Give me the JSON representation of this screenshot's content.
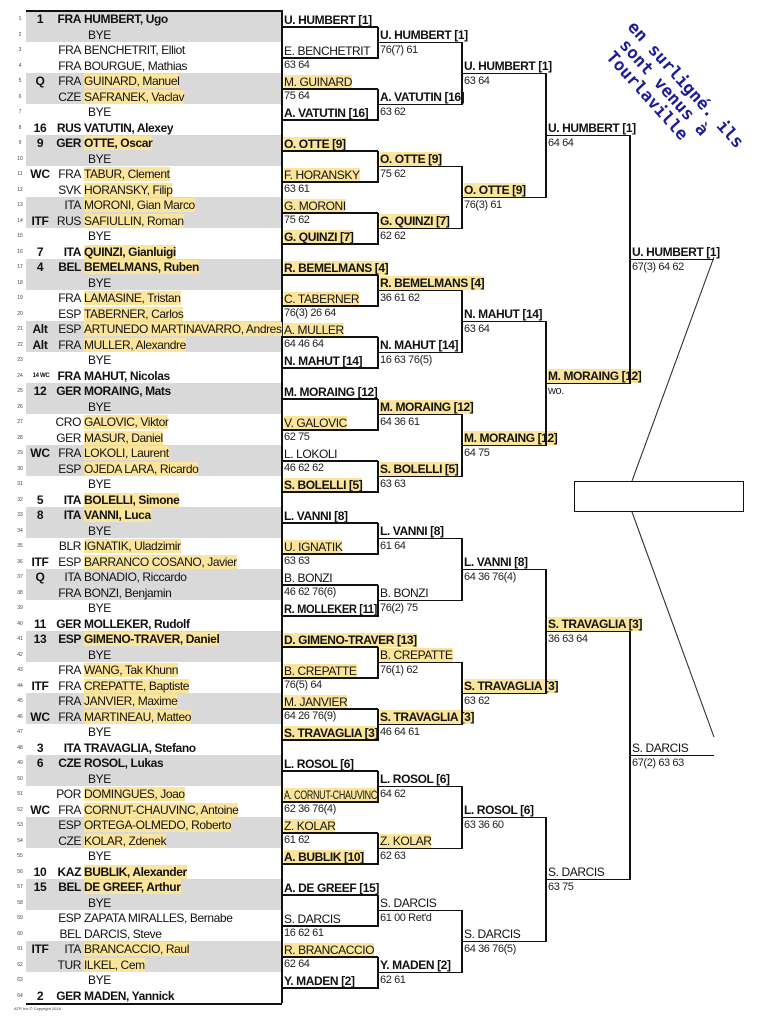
{
  "watermark": {
    "lines": [
      "en surligné. ils",
      "sont venus à",
      "Tourlaville"
    ],
    "color": "#1c1c9a"
  },
  "colors": {
    "highlight": "#fbe59c",
    "row_shade": "#d9d9d9"
  },
  "footer": "ATP, Inc © Copyright 2016",
  "players": [
    {
      "n": "1",
      "seed": "1",
      "country": "FRA",
      "name": "HUMBERT, Ugo",
      "hl": false
    },
    {
      "n": "2",
      "seed": "",
      "country": "",
      "name": "BYE",
      "hl": false
    },
    {
      "n": "3",
      "seed": "",
      "country": "FRA",
      "name": "BENCHETRIT, Elliot",
      "hl": false
    },
    {
      "n": "4",
      "seed": "",
      "country": "FRA",
      "name": "BOURGUE, Mathias",
      "hl": false
    },
    {
      "n": "5",
      "seed": "Q",
      "country": "FRA",
      "name": "GUINARD, Manuel",
      "hl": true
    },
    {
      "n": "6",
      "seed": "",
      "country": "CZE",
      "name": "SAFRANEK, Vaclav",
      "hl": true
    },
    {
      "n": "7",
      "seed": "",
      "country": "",
      "name": "BYE",
      "hl": false
    },
    {
      "n": "8",
      "seed": "16",
      "country": "RUS",
      "name": "VATUTIN, Alexey",
      "hl": false
    },
    {
      "n": "9",
      "seed": "9",
      "country": "GER",
      "name": "OTTE, Oscar",
      "hl": true
    },
    {
      "n": "10",
      "seed": "",
      "country": "",
      "name": "BYE",
      "hl": false
    },
    {
      "n": "11",
      "seed": "WC",
      "country": "FRA",
      "name": "TABUR, Clement",
      "hl": true
    },
    {
      "n": "12",
      "seed": "",
      "country": "SVK",
      "name": "HORANSKY, Filip",
      "hl": true
    },
    {
      "n": "13",
      "seed": "",
      "country": "ITA",
      "name": "MORONI, Gian Marco",
      "hl": true
    },
    {
      "n": "14",
      "seed": "ITF",
      "country": "RUS",
      "name": "SAFIULLIN, Roman",
      "hl": true
    },
    {
      "n": "15",
      "seed": "",
      "country": "",
      "name": "BYE",
      "hl": false
    },
    {
      "n": "16",
      "seed": "7",
      "country": "ITA",
      "name": "QUINZI, Gianluigi",
      "hl": true
    },
    {
      "n": "17",
      "seed": "4",
      "country": "BEL",
      "name": "BEMELMANS, Ruben",
      "hl": true
    },
    {
      "n": "18",
      "seed": "",
      "country": "",
      "name": "BYE",
      "hl": false
    },
    {
      "n": "19",
      "seed": "",
      "country": "FRA",
      "name": "LAMASINE, Tristan",
      "hl": true
    },
    {
      "n": "20",
      "seed": "",
      "country": "ESP",
      "name": "TABERNER, Carlos",
      "hl": true
    },
    {
      "n": "21",
      "seed": "Alt",
      "country": "ESP",
      "name": "ARTUNEDO MARTINAVARRO, Andres",
      "hl": true
    },
    {
      "n": "22",
      "seed": "Alt",
      "country": "FRA",
      "name": "MULLER, Alexandre",
      "hl": true
    },
    {
      "n": "23",
      "seed": "",
      "country": "",
      "name": "BYE",
      "hl": false
    },
    {
      "n": "24",
      "seed": "14 WC",
      "country": "FRA",
      "name": "MAHUT, Nicolas",
      "hl": false
    },
    {
      "n": "25",
      "seed": "12",
      "country": "GER",
      "name": "MORAING, Mats",
      "hl": false
    },
    {
      "n": "26",
      "seed": "",
      "country": "",
      "name": "BYE",
      "hl": false
    },
    {
      "n": "27",
      "seed": "",
      "country": "CRO",
      "name": "GALOVIC, Viktor",
      "hl": true
    },
    {
      "n": "28",
      "seed": "",
      "country": "GER",
      "name": "MASUR, Daniel",
      "hl": true
    },
    {
      "n": "29",
      "seed": "WC",
      "country": "FRA",
      "name": "LOKOLI, Laurent",
      "hl": true
    },
    {
      "n": "30",
      "seed": "",
      "country": "ESP",
      "name": "OJEDA LARA, Ricardo",
      "hl": true
    },
    {
      "n": "31",
      "seed": "",
      "country": "",
      "name": "BYE",
      "hl": false
    },
    {
      "n": "32",
      "seed": "5",
      "country": "ITA",
      "name": "BOLELLI, Simone",
      "hl": true
    },
    {
      "n": "33",
      "seed": "8",
      "country": "ITA",
      "name": "VANNI, Luca",
      "hl": true
    },
    {
      "n": "34",
      "seed": "",
      "country": "",
      "name": "BYE",
      "hl": false
    },
    {
      "n": "35",
      "seed": "",
      "country": "BLR",
      "name": "IGNATIK, Uladzimir",
      "hl": true
    },
    {
      "n": "36",
      "seed": "ITF",
      "country": "ESP",
      "name": "BARRANCO COSANO, Javier",
      "hl": true
    },
    {
      "n": "37",
      "seed": "Q",
      "country": "ITA",
      "name": "BONADIO, Riccardo",
      "hl": false
    },
    {
      "n": "38",
      "seed": "",
      "country": "FRA",
      "name": "BONZI, Benjamin",
      "hl": false
    },
    {
      "n": "39",
      "seed": "",
      "country": "",
      "name": "BYE",
      "hl": false
    },
    {
      "n": "40",
      "seed": "11",
      "country": "GER",
      "name": "MOLLEKER, Rudolf",
      "hl": false
    },
    {
      "n": "41",
      "seed": "13",
      "country": "ESP",
      "name": "GIMENO-TRAVER, Daniel",
      "hl": true
    },
    {
      "n": "42",
      "seed": "",
      "country": "",
      "name": "BYE",
      "hl": false
    },
    {
      "n": "43",
      "seed": "",
      "country": "FRA",
      "name": "WANG, Tak Khunn",
      "hl": true
    },
    {
      "n": "44",
      "seed": "ITF",
      "country": "FRA",
      "name": "CREPATTE, Baptiste",
      "hl": true
    },
    {
      "n": "45",
      "seed": "",
      "country": "FRA",
      "name": "JANVIER, Maxime",
      "hl": true
    },
    {
      "n": "46",
      "seed": "WC",
      "country": "FRA",
      "name": "MARTINEAU, Matteo",
      "hl": true
    },
    {
      "n": "47",
      "seed": "",
      "country": "",
      "name": "BYE",
      "hl": false
    },
    {
      "n": "48",
      "seed": "3",
      "country": "ITA",
      "name": "TRAVAGLIA, Stefano",
      "hl": false
    },
    {
      "n": "49",
      "seed": "6",
      "country": "CZE",
      "name": "ROSOL, Lukas",
      "hl": false
    },
    {
      "n": "50",
      "seed": "",
      "country": "",
      "name": "BYE",
      "hl": false
    },
    {
      "n": "51",
      "seed": "",
      "country": "POR",
      "name": "DOMINGUES, Joao",
      "hl": true
    },
    {
      "n": "52",
      "seed": "WC",
      "country": "FRA",
      "name": "CORNUT-CHAUVINC, Antoine",
      "hl": true
    },
    {
      "n": "53",
      "seed": "",
      "country": "ESP",
      "name": "ORTEGA-OLMEDO, Roberto",
      "hl": true
    },
    {
      "n": "54",
      "seed": "",
      "country": "CZE",
      "name": "KOLAR, Zdenek",
      "hl": true
    },
    {
      "n": "55",
      "seed": "",
      "country": "",
      "name": "BYE",
      "hl": false
    },
    {
      "n": "56",
      "seed": "10",
      "country": "KAZ",
      "name": "BUBLIK, Alexander",
      "hl": true
    },
    {
      "n": "57",
      "seed": "15",
      "country": "BEL",
      "name": "DE GREEF, Arthur",
      "hl": true
    },
    {
      "n": "58",
      "seed": "",
      "country": "",
      "name": "BYE",
      "hl": false
    },
    {
      "n": "59",
      "seed": "",
      "country": "ESP",
      "name": "ZAPATA MIRALLES, Bernabe",
      "hl": false
    },
    {
      "n": "60",
      "seed": "",
      "country": "BEL",
      "name": "DARCIS, Steve",
      "hl": false
    },
    {
      "n": "61",
      "seed": "ITF",
      "country": "ITA",
      "name": "BRANCACCIO, Raul",
      "hl": true
    },
    {
      "n": "62",
      "seed": "",
      "country": "TUR",
      "name": "ILKEL, Cem",
      "hl": true
    },
    {
      "n": "63",
      "seed": "",
      "country": "",
      "name": "BYE",
      "hl": false
    },
    {
      "n": "64",
      "seed": "2",
      "country": "GER",
      "name": "MADEN, Yannick",
      "hl": false
    }
  ],
  "rounds": [
    [
      {
        "name": "U. HUMBERT [1]",
        "score": "",
        "hl": false
      },
      {
        "name": "E. BENCHETRIT",
        "score": "63 64",
        "hl": false
      },
      {
        "name": "M. GUINARD",
        "score": "75 64",
        "hl": true
      },
      {
        "name": "A. VATUTIN [16]",
        "score": "",
        "hl": false
      },
      {
        "name": "O. OTTE [9]",
        "score": "",
        "hl": true
      },
      {
        "name": "F. HORANSKY",
        "score": "63 61",
        "hl": true
      },
      {
        "name": "G. MORONI",
        "score": "75 62",
        "hl": true
      },
      {
        "name": "G. QUINZI [7]",
        "score": "",
        "hl": true
      },
      {
        "name": "R. BEMELMANS [4]",
        "score": "",
        "hl": true
      },
      {
        "name": "C. TABERNER",
        "score": "76(3) 26 64",
        "hl": true
      },
      {
        "name": "A. MULLER",
        "score": "64 46 64",
        "hl": true
      },
      {
        "name": "N. MAHUT [14]",
        "score": "",
        "hl": false
      },
      {
        "name": "M. MORAING [12]",
        "score": "",
        "hl": false
      },
      {
        "name": "V. GALOVIC",
        "score": "62 75",
        "hl": true
      },
      {
        "name": "L. LOKOLI",
        "score": "46 62 62",
        "hl": false
      },
      {
        "name": "S. BOLELLI [5]",
        "score": "",
        "hl": true
      },
      {
        "name": "L. VANNI [8]",
        "score": "",
        "hl": false
      },
      {
        "name": "U. IGNATIK",
        "score": "63 63",
        "hl": true
      },
      {
        "name": "B. BONZI",
        "score": "46 62 76(6)",
        "hl": false
      },
      {
        "name": "R. MOLLEKER [11]",
        "score": "",
        "hl": false
      },
      {
        "name": "D. GIMENO-TRAVER [13]",
        "score": "",
        "hl": true
      },
      {
        "name": "B. CREPATTE",
        "score": "76(5) 64",
        "hl": true
      },
      {
        "name": "M. JANVIER",
        "score": "64 26 76(9)",
        "hl": true
      },
      {
        "name": "S. TRAVAGLIA [3]",
        "score": "",
        "hl": true
      },
      {
        "name": "L. ROSOL [6]",
        "score": "",
        "hl": false
      },
      {
        "name": "A. CORNUT-CHAUVINC",
        "score": "62 36 76(4)",
        "hl": true
      },
      {
        "name": "Z. KOLAR",
        "score": "61 62",
        "hl": true
      },
      {
        "name": "A. BUBLIK [10]",
        "score": "",
        "hl": true
      },
      {
        "name": "A. DE GREEF [15]",
        "score": "",
        "hl": false
      },
      {
        "name": "S. DARCIS",
        "score": "16 62 61",
        "hl": false
      },
      {
        "name": "R. BRANCACCIO",
        "score": "62 64",
        "hl": true
      },
      {
        "name": "Y. MADEN [2]",
        "score": "",
        "hl": false
      }
    ],
    [
      {
        "name": "U. HUMBERT [1]",
        "score": "76(7) 61",
        "hl": false
      },
      {
        "name": "A. VATUTIN [16]",
        "score": "63 62",
        "hl": false
      },
      {
        "name": "O. OTTE [9]",
        "score": "75 62",
        "hl": true
      },
      {
        "name": "G. QUINZI [7]",
        "score": "62 62",
        "hl": true
      },
      {
        "name": "R. BEMELMANS [4]",
        "score": "36 61 62",
        "hl": true
      },
      {
        "name": "N. MAHUT [14]",
        "score": "16 63 76(5)",
        "hl": false
      },
      {
        "name": "M. MORAING [12]",
        "score": "64 36 61",
        "hl": true
      },
      {
        "name": "S. BOLELLI [5]",
        "score": "63 63",
        "hl": true
      },
      {
        "name": "L. VANNI [8]",
        "score": "61 64",
        "hl": false
      },
      {
        "name": "B. BONZI",
        "score": "76(2) 75",
        "hl": false
      },
      {
        "name": "B. CREPATTE",
        "score": "76(1) 62",
        "hl": true
      },
      {
        "name": "S. TRAVAGLIA [3]",
        "score": "46 64 61",
        "hl": true
      },
      {
        "name": "L. ROSOL [6]",
        "score": "64 62",
        "hl": false
      },
      {
        "name": "Z. KOLAR",
        "score": "62 63",
        "hl": true
      },
      {
        "name": "S. DARCIS",
        "score": "61 00 Ret'd",
        "hl": false
      },
      {
        "name": "Y. MADEN [2]",
        "score": "62 61",
        "hl": false
      }
    ],
    [
      {
        "name": "U. HUMBERT [1]",
        "score": "63 64",
        "hl": false
      },
      {
        "name": "O. OTTE [9]",
        "score": "76(3) 61",
        "hl": true
      },
      {
        "name": "N. MAHUT [14]",
        "score": "63 64",
        "hl": false
      },
      {
        "name": "M. MORAING [12]",
        "score": "64 75",
        "hl": true
      },
      {
        "name": "L. VANNI [8]",
        "score": "64 36 76(4)",
        "hl": false
      },
      {
        "name": "S. TRAVAGLIA [3]",
        "score": "63 62",
        "hl": true
      },
      {
        "name": "L. ROSOL [6]",
        "score": "63 36 60",
        "hl": false
      },
      {
        "name": "S. DARCIS",
        "score": "64 36 76(5)",
        "hl": false
      }
    ],
    [
      {
        "name": "U. HUMBERT [1]",
        "score": "64 64",
        "hl": false
      },
      {
        "name": "M. MORAING [12]",
        "score": "wo.",
        "hl": true
      },
      {
        "name": "S. TRAVAGLIA [3]",
        "score": "36 63 64",
        "hl": true
      },
      {
        "name": "S. DARCIS",
        "score": "63 75",
        "hl": false
      }
    ],
    [
      {
        "name": "U. HUMBERT [1]",
        "score": "67(3) 64 62",
        "hl": false
      },
      {
        "name": "S. DARCIS",
        "score": "67(2) 63 63",
        "hl": false
      }
    ]
  ],
  "final": {
    "winner": ""
  }
}
